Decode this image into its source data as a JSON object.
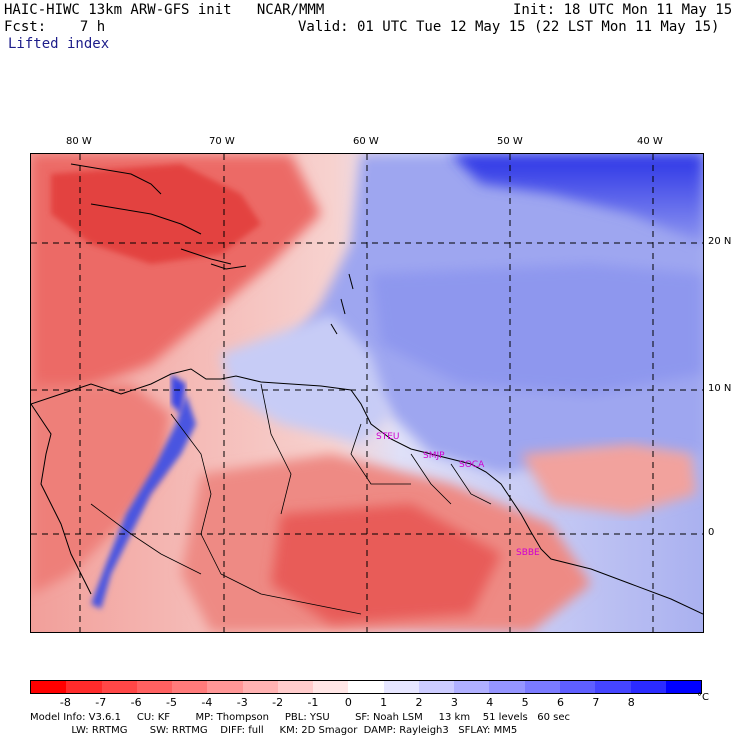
{
  "header": {
    "model_line": "HAIC-HIWC 13km ARW-GFS init   NCAR/MMM",
    "init_line": "Init: 18 UTC Mon 11 May 15",
    "fcst_line": "Fcst:    7 h",
    "valid_line": "Valid: 01 UTC Tue 12 May 15 (22 LST Mon 11 May 15)",
    "field_name": "Lifted index"
  },
  "map": {
    "lon_labels": [
      "80 W",
      "70 W",
      "60 W",
      "50 W",
      "40 W"
    ],
    "lat_labels": [
      "20 N",
      "10 N",
      "0"
    ],
    "stations": [
      "STEU",
      "SMJP",
      "SOCA",
      "SBBE"
    ],
    "colors": {
      "strong_negative": "#e83a3a",
      "weak_negative": "#f7b7b0",
      "neutral": "#ffffff",
      "weak_positive": "#c9cdf5",
      "strong_positive": "#1a1ee8"
    }
  },
  "colorbar": {
    "ticks": [
      "-8",
      "-7",
      "-6",
      "-5",
      "-4",
      "-3",
      "-2",
      "-1",
      "0",
      "1",
      "2",
      "3",
      "4",
      "5",
      "6",
      "7",
      "8"
    ],
    "unit": "°C",
    "colors": [
      "#ff0000",
      "#ff2b2b",
      "#ff4747",
      "#ff6161",
      "#ff7b7b",
      "#ff9797",
      "#ffb2b2",
      "#ffcccc",
      "#ffe6e6",
      "#ffffff",
      "#e6e6ff",
      "#ccccff",
      "#b0b0ff",
      "#9595ff",
      "#7b7bff",
      "#5f5fff",
      "#4545ff",
      "#2b2bff",
      "#0000ff"
    ]
  },
  "footer": {
    "line1": "Model Info: V3.6.1     CU: KF        MP: Thompson     PBL: YSU        SF: Noah LSM     13 km    51 levels   60 sec",
    "line2": "             LW: RRTMG       SW: RRTMG    DIFF: full     KM: 2D Smagor  DAMP: Rayleigh3   SFLAY: MM5"
  }
}
